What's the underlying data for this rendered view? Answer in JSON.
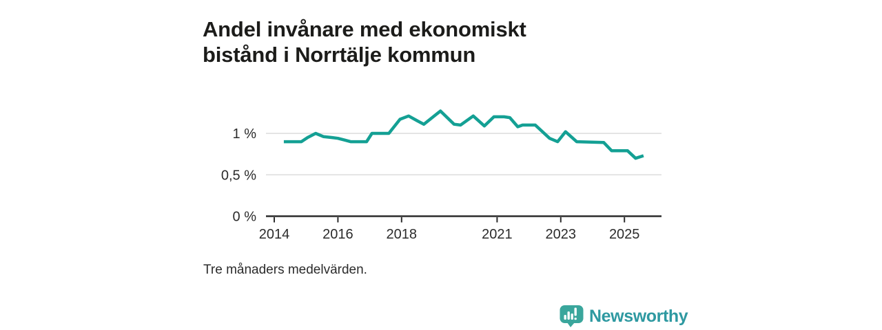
{
  "title": {
    "line1": "Andel invånare med ekonomiskt",
    "line2": "bistånd i Norrtälje kommun"
  },
  "footnote": "Tre månaders medelvärden.",
  "branding": {
    "wordmark": "Newsworthy",
    "logo_icon": "newsworthy-bar-chart-speech-bubble-icon"
  },
  "colors": {
    "line": "#14a094",
    "grid": "#dcdcdc",
    "axis": "#2b2b2b",
    "tick_label": "#2b2b2b",
    "title_text": "#1c1c1a",
    "brand_teal_text": "#2e99a1",
    "brand_teal_icon": "#3aa69c"
  },
  "chart_data": {
    "type": "line",
    "title": "Andel invånare med ekonomiskt bistånd i Norrtälje kommun",
    "xlabel": "",
    "ylabel": "",
    "unit": "%",
    "grid": "horizontal",
    "legend_position": "none",
    "x_range": [
      2013.75,
      2026.15
    ],
    "y_range": [
      0,
      1.45
    ],
    "x_ticks": [
      2014,
      2016,
      2018,
      2021,
      2023,
      2025
    ],
    "y_ticks": [
      {
        "value": 0,
        "label": "0 %"
      },
      {
        "value": 0.5,
        "label": "0,5 %"
      },
      {
        "value": 1,
        "label": "1 %"
      }
    ],
    "series": [
      {
        "name": "Andel invånare med ekonomiskt bistånd",
        "points": [
          [
            2014.3,
            0.9
          ],
          [
            2014.85,
            0.9
          ],
          [
            2015.05,
            0.95
          ],
          [
            2015.3,
            1.0
          ],
          [
            2015.55,
            0.96
          ],
          [
            2015.8,
            0.95
          ],
          [
            2016.0,
            0.94
          ],
          [
            2016.2,
            0.92
          ],
          [
            2016.4,
            0.9
          ],
          [
            2016.9,
            0.9
          ],
          [
            2017.07,
            1.0
          ],
          [
            2017.6,
            1.0
          ],
          [
            2017.95,
            1.17
          ],
          [
            2018.22,
            1.21
          ],
          [
            2018.5,
            1.15
          ],
          [
            2018.7,
            1.11
          ],
          [
            2019.22,
            1.27
          ],
          [
            2019.65,
            1.11
          ],
          [
            2019.85,
            1.1
          ],
          [
            2020.25,
            1.21
          ],
          [
            2020.6,
            1.09
          ],
          [
            2020.9,
            1.2
          ],
          [
            2021.22,
            1.2
          ],
          [
            2021.4,
            1.19
          ],
          [
            2021.65,
            1.08
          ],
          [
            2021.8,
            1.1
          ],
          [
            2022.2,
            1.1
          ],
          [
            2022.65,
            0.94
          ],
          [
            2022.9,
            0.9
          ],
          [
            2023.15,
            1.02
          ],
          [
            2023.5,
            0.9
          ],
          [
            2024.35,
            0.89
          ],
          [
            2024.6,
            0.79
          ],
          [
            2025.1,
            0.79
          ],
          [
            2025.35,
            0.7
          ],
          [
            2025.6,
            0.73
          ]
        ]
      }
    ]
  }
}
